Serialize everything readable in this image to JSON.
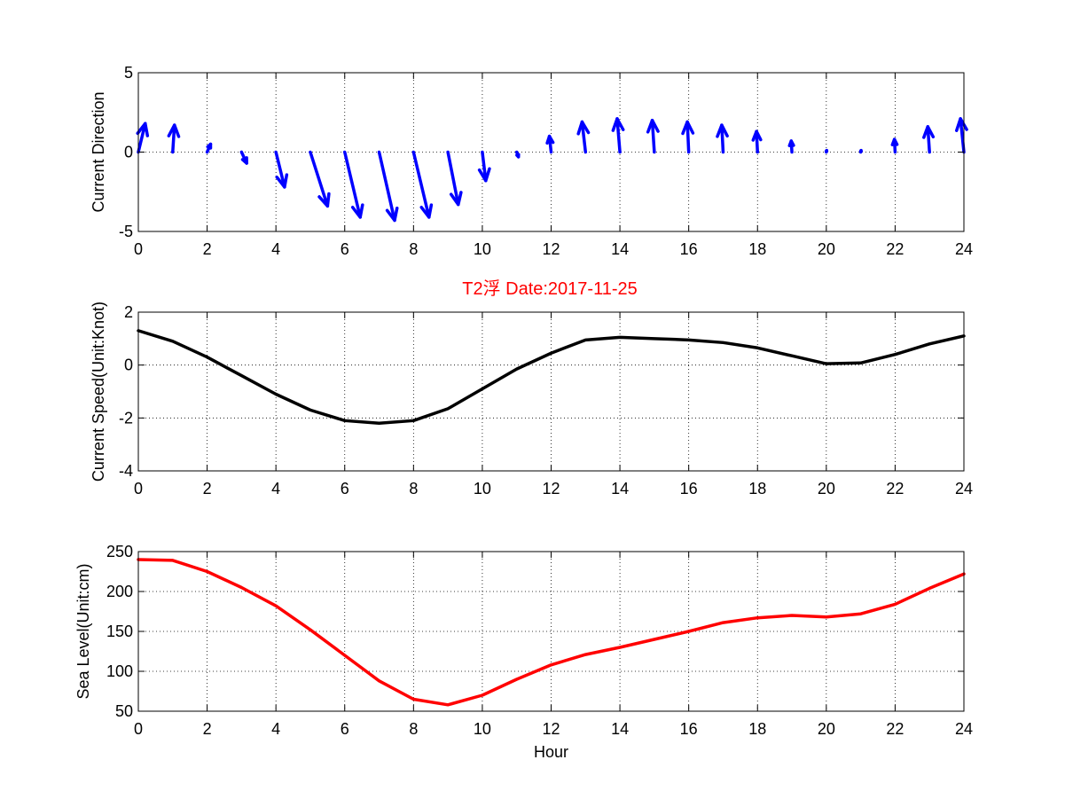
{
  "figure_title": "T2浮   Date:2017-11-25",
  "colors": {
    "direction": "#0000ff",
    "speed": "#000000",
    "sea_level": "#ff0000",
    "title": "#ff0000",
    "axes": "#000000"
  },
  "chart_data": [
    {
      "type": "quiver",
      "ylabel": "Current Direction",
      "xlabel": "",
      "xlim": [
        0,
        24
      ],
      "ylim": [
        -5,
        5
      ],
      "xticks": [
        0,
        2,
        4,
        6,
        8,
        10,
        12,
        14,
        16,
        18,
        20,
        22,
        24
      ],
      "yticks": [
        -5,
        0,
        5
      ],
      "grid": true,
      "x": [
        0,
        1,
        2,
        3,
        4,
        5,
        6,
        7,
        8,
        9,
        10,
        11,
        12,
        13,
        14,
        15,
        16,
        17,
        18,
        19,
        20,
        21,
        22,
        23,
        24
      ],
      "u": [
        0.2,
        0.05,
        0.1,
        0.15,
        0.25,
        0.5,
        0.45,
        0.45,
        0.45,
        0.3,
        0.1,
        0.05,
        -0.05,
        -0.1,
        -0.08,
        -0.06,
        -0.04,
        -0.04,
        -0.03,
        -0.02,
        0.01,
        0.01,
        -0.02,
        -0.05,
        -0.1
      ],
      "v": [
        1.8,
        1.7,
        0.5,
        -0.7,
        -2.2,
        -3.4,
        -4.1,
        -4.3,
        -4.1,
        -3.3,
        -1.8,
        -0.3,
        1.0,
        1.9,
        2.1,
        2.0,
        1.9,
        1.7,
        1.3,
        0.7,
        0.1,
        0.1,
        0.8,
        1.6,
        2.1
      ]
    },
    {
      "type": "line",
      "ylabel": "Current Speed(Unit:Knot)",
      "xlabel": "",
      "xlim": [
        0,
        24
      ],
      "ylim": [
        -4,
        2
      ],
      "xticks": [
        0,
        2,
        4,
        6,
        8,
        10,
        12,
        14,
        16,
        18,
        20,
        22,
        24
      ],
      "yticks": [
        -4,
        -2,
        0,
        2
      ],
      "grid": true,
      "x": [
        0,
        1,
        2,
        3,
        4,
        5,
        6,
        7,
        8,
        9,
        10,
        11,
        12,
        13,
        14,
        15,
        16,
        17,
        18,
        19,
        20,
        21,
        22,
        23,
        24
      ],
      "y": [
        1.3,
        0.9,
        0.3,
        -0.4,
        -1.1,
        -1.7,
        -2.1,
        -2.2,
        -2.1,
        -1.65,
        -0.9,
        -0.15,
        0.45,
        0.95,
        1.05,
        1.0,
        0.95,
        0.85,
        0.65,
        0.35,
        0.05,
        0.08,
        0.4,
        0.8,
        1.1
      ]
    },
    {
      "type": "line",
      "ylabel": "Sea Level(Unit:cm)",
      "xlabel": "Hour",
      "xlim": [
        0,
        24
      ],
      "ylim": [
        50,
        250
      ],
      "xticks": [
        0,
        2,
        4,
        6,
        8,
        10,
        12,
        14,
        16,
        18,
        20,
        22,
        24
      ],
      "yticks": [
        50,
        100,
        150,
        200,
        250
      ],
      "grid": true,
      "x": [
        0,
        1,
        2,
        3,
        4,
        5,
        6,
        7,
        8,
        9,
        10,
        11,
        12,
        13,
        14,
        15,
        16,
        17,
        18,
        19,
        20,
        21,
        22,
        23,
        24
      ],
      "y": [
        240,
        239,
        225,
        205,
        182,
        152,
        120,
        88,
        65,
        58,
        70,
        90,
        108,
        121,
        130,
        140,
        150,
        161,
        167,
        170,
        168,
        172,
        184,
        204,
        222
      ]
    }
  ]
}
